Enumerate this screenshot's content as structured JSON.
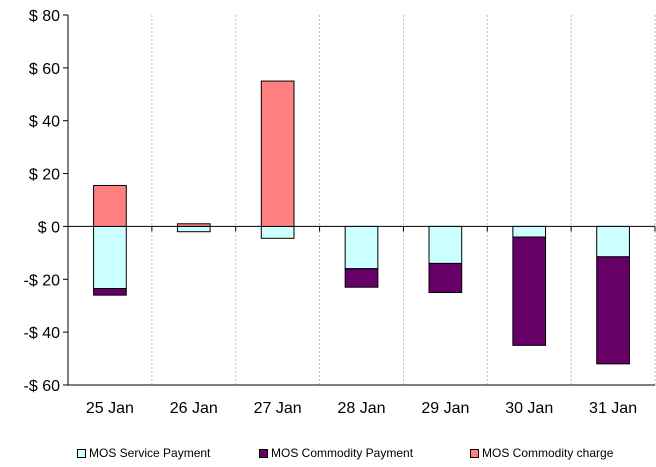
{
  "chart_data": {
    "type": "bar",
    "stacked": true,
    "categories": [
      "25 Jan",
      "26 Jan",
      "27 Jan",
      "28 Jan",
      "29 Jan",
      "30 Jan",
      "31 Jan"
    ],
    "series": [
      {
        "name": "MOS Service Payment",
        "color": "#ccffff",
        "values": [
          -23.5,
          -2,
          -4.5,
          -16,
          -14,
          -4,
          -11.5
        ]
      },
      {
        "name": "MOS Commodity Payment",
        "color": "#660066",
        "values": [
          -2.5,
          0,
          0,
          -7,
          -11,
          -41,
          -40.5
        ]
      },
      {
        "name": "MOS Commodity charge",
        "color": "#ff8080",
        "values": [
          15.5,
          1,
          55,
          0,
          0,
          0,
          0
        ]
      }
    ],
    "ylim": [
      -60,
      80
    ],
    "yticks": [
      -60,
      -40,
      -20,
      0,
      20,
      40,
      60,
      80
    ],
    "ytick_labels": [
      "-$ 60",
      "-$ 40",
      "-$ 20",
      "$ 0",
      "$ 20",
      "$ 40",
      "$ 60",
      "$ 80"
    ],
    "grid": "vertical",
    "legend_position": "bottom",
    "title": "",
    "xlabel": "",
    "ylabel": ""
  }
}
